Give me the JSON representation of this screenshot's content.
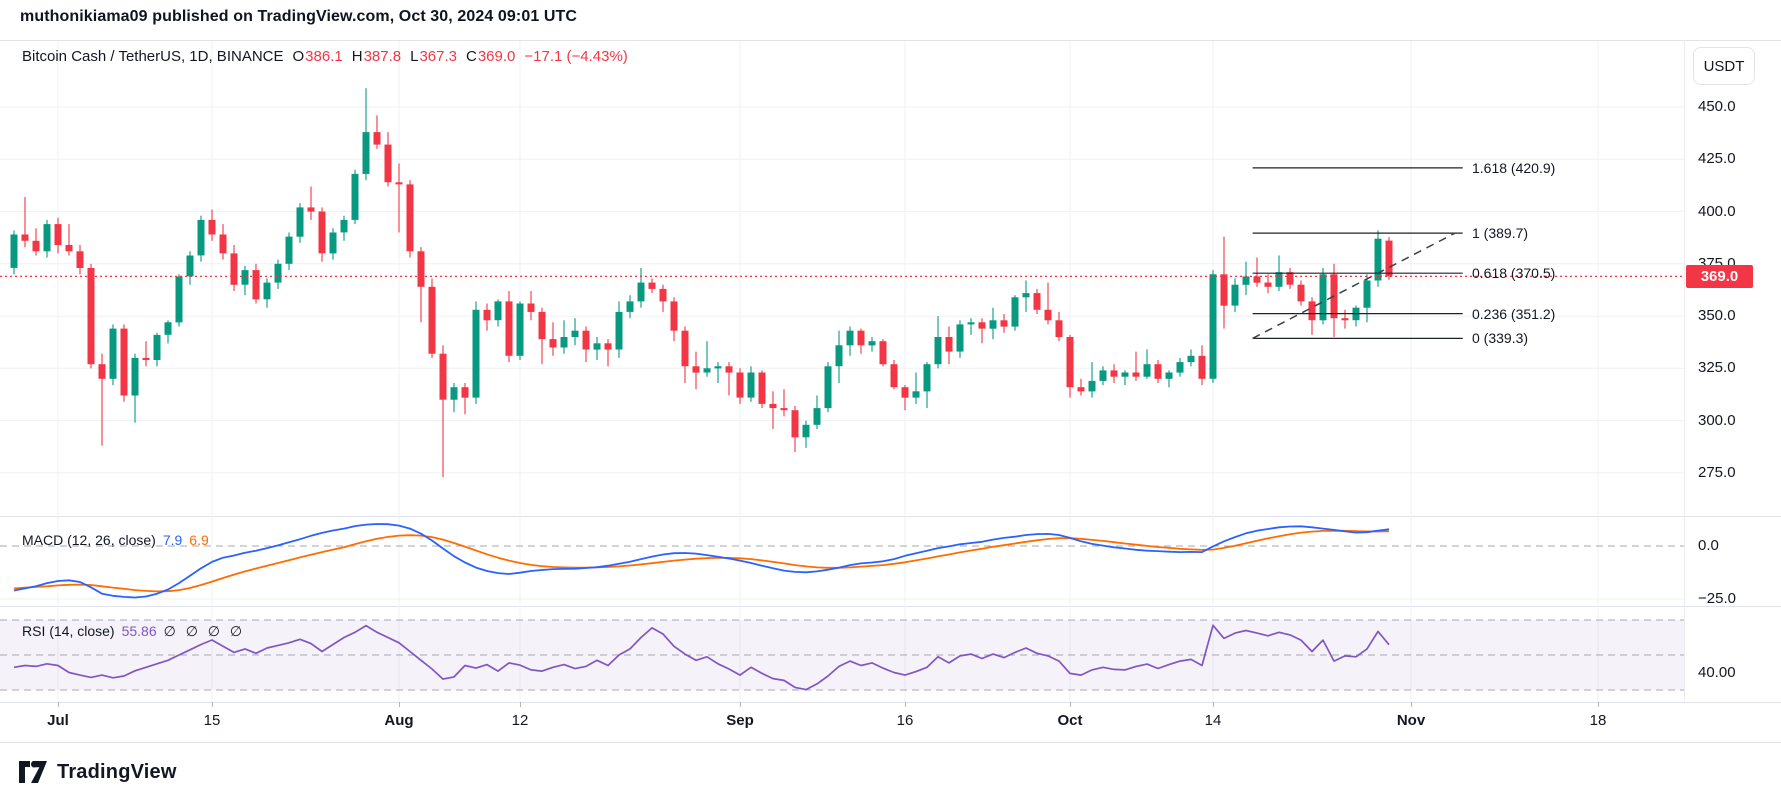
{
  "header": {
    "title": "muthonikiama09 published on TradingView.com, Oct 30, 2024 09:01 UTC"
  },
  "toolbar": {
    "currency_label": "USDT"
  },
  "legend": {
    "symbol": "Bitcoin Cash / TetherUS, 1D, BINANCE",
    "o_label": "O",
    "o_value": "386.1",
    "h_label": "H",
    "h_value": "387.8",
    "l_label": "L",
    "l_value": "367.3",
    "c_label": "C",
    "c_value": "369.0",
    "change": "−17.1 (−4.43%)"
  },
  "macd_legend": {
    "label": "MACD (12, 26, close)",
    "macd_value": "7.9",
    "signal_value": "6.9"
  },
  "rsi_legend": {
    "label": "RSI (14, close)",
    "value": "55.86",
    "nulls": "∅ ∅ ∅ ∅"
  },
  "price_badge": "369.0",
  "footer": {
    "brand": "TradingView"
  },
  "colors": {
    "up": "#089981",
    "down": "#f23645",
    "macd": "#2962ff",
    "signal": "#ff6d00",
    "rsi": "#7e57c2",
    "rsi_band": "rgba(126,87,194,0.08)",
    "grid": "#eef0f4",
    "dashed": "#a5a8b1",
    "fib": "#1e222d",
    "trend": "#3c404b",
    "current_price": "#f23645",
    "text": "#131722"
  },
  "chart_data": {
    "type": "candlestick",
    "title": "Bitcoin Cash / TetherUS, 1D, BINANCE",
    "interval": "1D",
    "start_date": "2024-06-27",
    "end_date": "2024-10-30",
    "ylabel": "USDT",
    "price_ylim": [
      254,
      481
    ],
    "grid": true,
    "y_ticks": [
      {
        "label": "450.0",
        "value": 450
      },
      {
        "label": "425.0",
        "value": 425
      },
      {
        "label": "400.0",
        "value": 400
      },
      {
        "label": "375.0",
        "value": 375
      },
      {
        "label": "350.0",
        "value": 350
      },
      {
        "label": "325.0",
        "value": 325
      },
      {
        "label": "300.0",
        "value": 300
      },
      {
        "label": "275.0",
        "value": 275
      }
    ],
    "macd_ticks": [
      {
        "label": "0.0",
        "value": 0
      },
      {
        "label": "−25.0",
        "value": -25
      }
    ],
    "rsi_ticks": [
      {
        "label": "40.00",
        "value": 40
      }
    ],
    "x_ticks": [
      {
        "label": "Jul",
        "index": 4,
        "month": true
      },
      {
        "label": "15",
        "index": 18
      },
      {
        "label": "Aug",
        "index": 35,
        "month": true
      },
      {
        "label": "12",
        "index": 46
      },
      {
        "label": "Sep",
        "index": 66,
        "month": true
      },
      {
        "label": "16",
        "index": 81
      },
      {
        "label": "Oct",
        "index": 96,
        "month": true
      },
      {
        "label": "14",
        "index": 109
      },
      {
        "label": "Nov",
        "index": 127,
        "month": true
      },
      {
        "label": "18",
        "index": 144
      }
    ],
    "current_price": 369.0,
    "fib": {
      "x1_index": 112.6,
      "x2_index": 131.7,
      "levels": [
        {
          "label": "1.618 (420.9)",
          "price": 420.9
        },
        {
          "label": "1 (389.7)",
          "price": 389.7
        },
        {
          "label": "0.618 (370.5)",
          "price": 370.5
        },
        {
          "label": "0.236 (351.2)",
          "price": 351.2
        },
        {
          "label": "0 (339.3)",
          "price": 339.3
        }
      ]
    },
    "trendline": {
      "from_index": 112.6,
      "from_price": 339.3,
      "to_index": 131,
      "to_price": 389.7
    },
    "rsi_bands": [
      70,
      50,
      30
    ],
    "ohlc": [
      [
        373,
        391,
        370,
        389
      ],
      [
        389,
        407,
        383,
        386
      ],
      [
        386,
        392,
        379,
        381
      ],
      [
        381,
        396,
        378,
        394
      ],
      [
        394,
        397,
        380,
        384
      ],
      [
        384,
        394,
        379,
        381
      ],
      [
        381,
        384,
        370,
        373
      ],
      [
        373,
        375,
        325,
        327
      ],
      [
        327,
        332,
        288,
        320
      ],
      [
        320,
        346,
        317,
        344
      ],
      [
        344,
        346,
        309,
        312
      ],
      [
        312,
        332,
        299,
        330
      ],
      [
        330,
        338,
        326,
        329
      ],
      [
        329,
        342,
        326,
        341
      ],
      [
        341,
        348,
        337,
        347
      ],
      [
        347,
        370,
        345,
        369
      ],
      [
        369,
        381,
        365,
        379
      ],
      [
        379,
        398,
        376,
        396
      ],
      [
        396,
        401,
        386,
        389
      ],
      [
        389,
        394,
        377,
        380
      ],
      [
        380,
        384,
        362,
        365
      ],
      [
        365,
        374,
        360,
        372
      ],
      [
        372,
        375,
        356,
        358
      ],
      [
        358,
        368,
        354,
        366
      ],
      [
        366,
        377,
        363,
        375
      ],
      [
        375,
        390,
        372,
        388
      ],
      [
        388,
        404,
        385,
        402
      ],
      [
        402,
        412,
        396,
        400
      ],
      [
        400,
        402,
        376,
        380
      ],
      [
        380,
        392,
        377,
        390
      ],
      [
        390,
        398,
        386,
        396
      ],
      [
        396,
        420,
        394,
        418
      ],
      [
        418,
        459,
        415,
        438
      ],
      [
        438,
        446,
        430,
        432
      ],
      [
        432,
        438,
        412,
        414
      ],
      [
        414,
        423,
        390,
        413
      ],
      [
        413,
        415,
        378,
        381
      ],
      [
        381,
        383,
        347,
        364
      ],
      [
        364,
        368,
        330,
        332
      ],
      [
        332,
        336,
        273,
        310
      ],
      [
        310,
        318,
        304,
        316
      ],
      [
        316,
        318,
        303,
        311
      ],
      [
        311,
        357,
        308,
        353
      ],
      [
        353,
        356,
        343,
        348
      ],
      [
        348,
        358,
        345,
        357
      ],
      [
        357,
        362,
        328,
        331
      ],
      [
        331,
        357,
        329,
        356
      ],
      [
        356,
        362,
        348,
        352
      ],
      [
        352,
        354,
        327,
        339
      ],
      [
        339,
        347,
        331,
        335
      ],
      [
        335,
        348,
        332,
        340
      ],
      [
        340,
        349,
        336,
        343
      ],
      [
        343,
        345,
        328,
        334
      ],
      [
        334,
        340,
        329,
        337
      ],
      [
        337,
        339,
        326,
        334
      ],
      [
        334,
        357,
        330,
        352
      ],
      [
        352,
        360,
        349,
        357
      ],
      [
        357,
        373,
        354,
        366
      ],
      [
        366,
        368,
        361,
        363
      ],
      [
        363,
        365,
        352,
        357
      ],
      [
        357,
        359,
        338,
        343
      ],
      [
        343,
        345,
        318,
        326
      ],
      [
        326,
        333,
        315,
        323
      ],
      [
        323,
        338,
        321,
        325
      ],
      [
        325,
        328,
        318,
        326
      ],
      [
        326,
        328,
        312,
        323
      ],
      [
        323,
        325,
        308,
        311
      ],
      [
        311,
        326,
        309,
        323
      ],
      [
        323,
        324,
        306,
        308
      ],
      [
        308,
        314,
        296,
        306
      ],
      [
        306,
        315,
        302,
        305
      ],
      [
        305,
        307,
        285,
        292
      ],
      [
        292,
        300,
        287,
        298
      ],
      [
        298,
        312,
        296,
        306
      ],
      [
        306,
        328,
        304,
        326
      ],
      [
        326,
        343,
        318,
        336
      ],
      [
        336,
        345,
        331,
        343
      ],
      [
        343,
        344,
        332,
        336
      ],
      [
        336,
        340,
        333,
        338
      ],
      [
        338,
        339,
        326,
        327
      ],
      [
        327,
        329,
        315,
        316
      ],
      [
        316,
        317,
        305,
        311
      ],
      [
        311,
        323,
        308,
        314
      ],
      [
        314,
        328,
        306,
        327
      ],
      [
        327,
        350,
        325,
        340
      ],
      [
        340,
        345,
        327,
        333
      ],
      [
        333,
        348,
        330,
        346
      ],
      [
        346,
        349,
        341,
        347
      ],
      [
        347,
        349,
        337,
        344
      ],
      [
        344,
        354,
        339,
        348
      ],
      [
        348,
        351,
        342,
        345
      ],
      [
        345,
        360,
        343,
        359
      ],
      [
        359,
        367,
        352,
        361
      ],
      [
        361,
        363,
        351,
        353
      ],
      [
        353,
        366,
        346,
        348
      ],
      [
        348,
        352,
        338,
        340
      ],
      [
        340,
        341,
        311,
        316
      ],
      [
        316,
        320,
        312,
        314
      ],
      [
        314,
        328,
        311,
        319
      ],
      [
        319,
        326,
        317,
        324
      ],
      [
        324,
        327,
        318,
        321
      ],
      [
        321,
        324,
        317,
        323
      ],
      [
        323,
        333,
        319,
        321
      ],
      [
        321,
        334,
        320,
        327
      ],
      [
        327,
        329,
        318,
        320
      ],
      [
        320,
        324,
        316,
        323
      ],
      [
        323,
        330,
        321,
        328
      ],
      [
        328,
        334,
        326,
        331
      ],
      [
        331,
        336,
        317,
        320
      ],
      [
        320,
        372,
        318,
        370
      ],
      [
        370,
        388,
        344,
        355
      ],
      [
        355,
        368,
        352,
        365
      ],
      [
        365,
        376,
        360,
        369
      ],
      [
        369,
        378,
        364,
        366
      ],
      [
        366,
        370,
        361,
        364
      ],
      [
        364,
        379,
        362,
        371
      ],
      [
        371,
        373,
        363,
        365
      ],
      [
        365,
        367,
        355,
        357
      ],
      [
        357,
        359,
        341,
        348
      ],
      [
        348,
        373,
        346,
        370
      ],
      [
        370,
        375,
        340,
        349
      ],
      [
        349,
        353,
        344,
        348
      ],
      [
        348,
        355,
        345,
        354
      ],
      [
        354,
        370,
        347,
        367
      ],
      [
        367,
        391,
        364,
        387
      ],
      [
        386.1,
        387.8,
        367.3,
        369
      ]
    ],
    "macd": [
      -21,
      -20,
      -19,
      -17.5,
      -16.5,
      -16.2,
      -17,
      -19.5,
      -22.5,
      -23.5,
      -24,
      -24.3,
      -23.8,
      -22.5,
      -20.5,
      -17.5,
      -14,
      -10.5,
      -7.5,
      -5.5,
      -4.5,
      -3.2,
      -2.2,
      -1.0,
      0.3,
      1.8,
      3.2,
      4.8,
      6.2,
      7.3,
      8.2,
      9.4,
      10.1,
      10.4,
      10.3,
      9.6,
      8.2,
      5.8,
      2.6,
      -1.2,
      -4.8,
      -7.8,
      -10.2,
      -11.8,
      -12.8,
      -13.2,
      -12.6,
      -11.8,
      -11.3,
      -10.9,
      -10.8,
      -10.7,
      -10.4,
      -10.0,
      -9.3,
      -8.4,
      -7.4,
      -6.2,
      -5.0,
      -4.0,
      -3.4,
      -3.3,
      -3.6,
      -4.3,
      -5.1,
      -5.9,
      -6.9,
      -8.0,
      -9.3,
      -10.5,
      -11.6,
      -12.2,
      -12.4,
      -12.0,
      -11.2,
      -10.2,
      -9.0,
      -8.2,
      -7.8,
      -7.2,
      -6.2,
      -4.6,
      -3.4,
      -2.2,
      -1.0,
      -0.2,
      0.8,
      1.4,
      2.0,
      3.0,
      3.8,
      4.4,
      5.2,
      5.6,
      5.7,
      5.2,
      3.8,
      2.2,
      1.0,
      0.2,
      -0.6,
      -1.2,
      -1.8,
      -2.2,
      -2.4,
      -2.7,
      -2.9,
      -2.8,
      -2.9,
      -0.2,
      2.2,
      4.2,
      6.0,
      7.2,
      8.0,
      8.8,
      9.2,
      9.3,
      8.8,
      8.2,
      7.6,
      6.9,
      6.3,
      6.5,
      7.2,
      7.9
    ],
    "signal": [
      -20,
      -19.6,
      -19.3,
      -19,
      -18.6,
      -18.3,
      -18.2,
      -18.4,
      -19,
      -19.6,
      -20.2,
      -20.8,
      -21.2,
      -21.4,
      -21.3,
      -20.8,
      -19.8,
      -18.4,
      -16.8,
      -15.1,
      -13.5,
      -12,
      -10.6,
      -9.3,
      -8,
      -6.7,
      -5.4,
      -4.1,
      -2.9,
      -1.7,
      -0.6,
      0.9,
      2.2,
      3.4,
      4.3,
      4.9,
      5.1,
      4.9,
      4.2,
      3.0,
      1.4,
      -0.3,
      -2.1,
      -3.9,
      -5.5,
      -6.9,
      -8.0,
      -8.9,
      -9.5,
      -9.9,
      -10.1,
      -10.2,
      -10.2,
      -10.1,
      -9.9,
      -9.6,
      -9.2,
      -8.7,
      -8.1,
      -7.5,
      -6.9,
      -6.4,
      -6.0,
      -5.7,
      -5.6,
      -5.6,
      -5.8,
      -6.2,
      -6.8,
      -7.5,
      -8.2,
      -9.0,
      -9.6,
      -10.1,
      -10.3,
      -10.3,
      -10.1,
      -9.7,
      -9.4,
      -9.0,
      -8.4,
      -7.7,
      -6.8,
      -5.9,
      -4.9,
      -4.0,
      -3.0,
      -2.1,
      -1.3,
      -0.4,
      0.4,
      1.2,
      2.0,
      2.7,
      3.3,
      3.7,
      3.7,
      3.4,
      2.9,
      2.4,
      1.8,
      1.2,
      0.6,
      0.05,
      -0.45,
      -0.9,
      -1.3,
      -1.6,
      -1.85,
      -1.7,
      -0.9,
      0.1,
      1.3,
      2.5,
      3.6,
      4.6,
      5.5,
      6.3,
      6.8,
      7.1,
      7.2,
      7.15,
      7.0,
      6.9,
      6.85,
      6.9
    ],
    "rsi": [
      43,
      44,
      43.5,
      45,
      44,
      40,
      38.5,
      37.2,
      38.5,
      37,
      38,
      41,
      43,
      45,
      47,
      50,
      53,
      56,
      58.6,
      55,
      51.5,
      53.5,
      51,
      54,
      55.5,
      57,
      59,
      56.5,
      52,
      56,
      60,
      63,
      66.8,
      63,
      60,
      57,
      52,
      47,
      42,
      36.2,
      37.5,
      44,
      42.5,
      44.5,
      40.8,
      45.5,
      44.2,
      41.5,
      40.8,
      43,
      44.5,
      42.2,
      43.5,
      47,
      44,
      50,
      53.5,
      60,
      65.5,
      62,
      55,
      50.5,
      47,
      49,
      45,
      42,
      38.5,
      43,
      39.5,
      36.5,
      35.5,
      31.5,
      30.2,
      33.5,
      38,
      43.5,
      46.5,
      44,
      45.5,
      42.5,
      40,
      38.5,
      40.5,
      43,
      49,
      45.5,
      49.5,
      50.5,
      48,
      50.5,
      48.5,
      51.5,
      54,
      51,
      49.5,
      46.5,
      39.5,
      38.5,
      41.5,
      43,
      41.8,
      41.5,
      43.5,
      44.8,
      42.3,
      44.5,
      46.5,
      47.5,
      44,
      67,
      59.5,
      62.5,
      64,
      62.5,
      61,
      63,
      61.5,
      58.5,
      52,
      58.5,
      46.5,
      49.5,
      49,
      53.5,
      63.5,
      55.86
    ]
  }
}
